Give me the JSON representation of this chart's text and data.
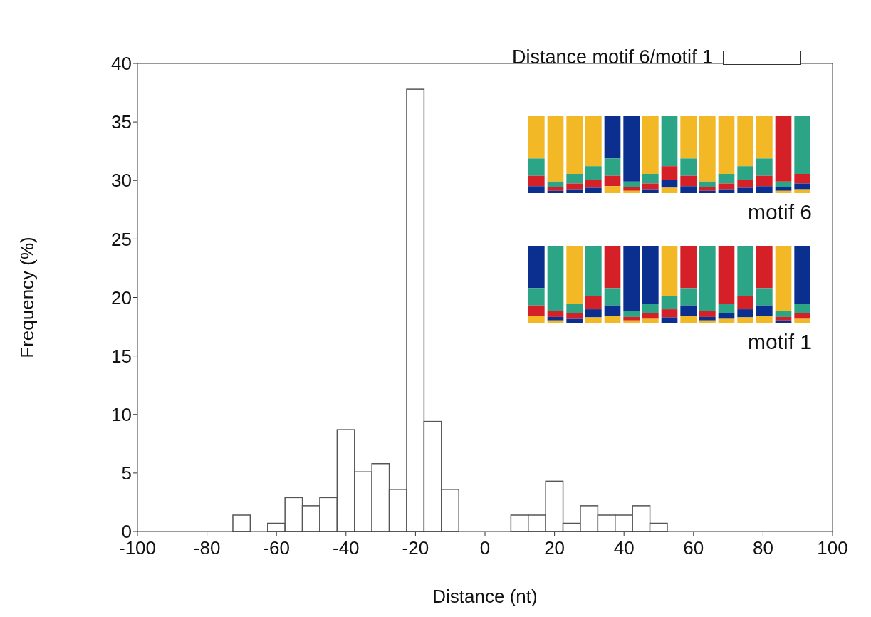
{
  "chart_data": {
    "type": "histogram",
    "xlabel": "Distance (nt)",
    "ylabel": "Frequency (%)",
    "bins": [
      -72.5,
      -67.5,
      -62.5,
      -57.5,
      -52.5,
      -47.5,
      -42.5,
      -37.5,
      -32.5,
      -27.5,
      -22.5,
      -17.5,
      -12.5,
      -7.5,
      -2.5,
      2.5,
      7.5,
      12.5,
      17.5,
      22.5,
      27.5,
      32.5,
      37.5,
      42.5,
      47.5,
      52.5
    ],
    "series": [
      {
        "name": "Distance motif 6/motif 1",
        "color": "#ffffff",
        "values": [
          1.4,
          0,
          0.7,
          2.9,
          2.2,
          2.9,
          8.7,
          5.1,
          5.8,
          3.6,
          37.8,
          9.4,
          3.6,
          0,
          0,
          0,
          1.4,
          1.4,
          4.3,
          0.7,
          2.2,
          1.4,
          1.4,
          2.2,
          0.7
        ]
      }
    ],
    "xlim": [
      -100,
      100
    ],
    "xticks": [
      -100,
      -80,
      -60,
      -40,
      -20,
      0,
      20,
      40,
      60,
      80,
      100
    ],
    "ylim": [
      0,
      40
    ],
    "yticks": [
      0,
      5,
      10,
      15,
      20,
      25,
      30,
      35,
      40
    ],
    "legend": "top right",
    "annotations": [
      "motif 6",
      "motif 1"
    ]
  }
}
